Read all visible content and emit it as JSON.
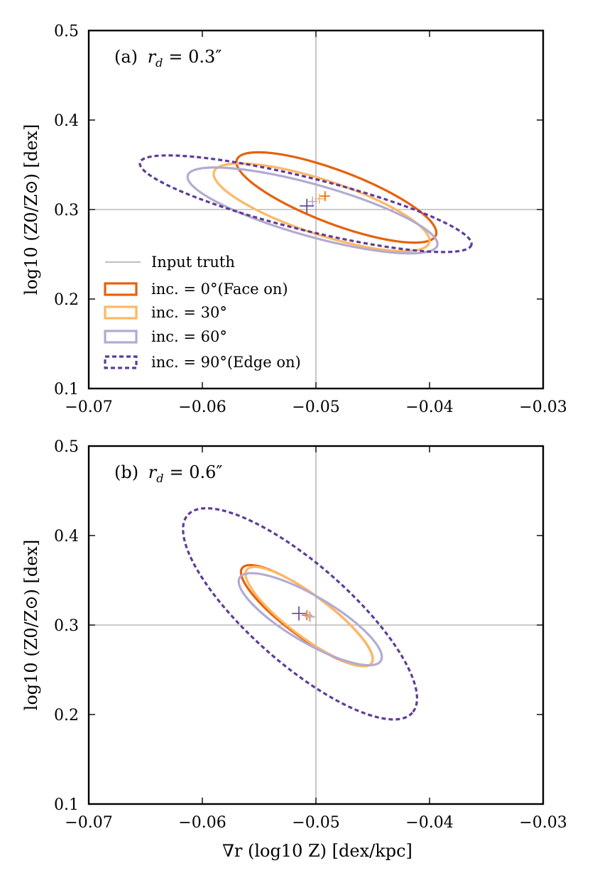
{
  "figure": {
    "xlabel": "∇r (log10 Z) [dex/kpc]"
  },
  "colors": {
    "face_on": "#e6610d",
    "inc30": "#fdb863",
    "inc60": "#b2abd2",
    "edge_on": "#5e3c99",
    "truth": "#999999"
  },
  "chart_data": [
    {
      "type": "scatter",
      "panel_label": "(a) r_d = 0.3″",
      "panel_prefix": "(a)",
      "rd_symbol": "r",
      "rd_subscript": "d",
      "rd_value": "= 0.3″",
      "xlabel": "",
      "ylabel": "log10 (Z0/Z⊙) [dex]",
      "xlim": [
        -0.07,
        -0.03
      ],
      "ylim": [
        0.1,
        0.5
      ],
      "xticks": [
        "−0.07",
        "−0.06",
        "−0.05",
        "−0.04",
        "−0.03"
      ],
      "xtick_values": [
        -0.07,
        -0.06,
        -0.05,
        -0.04,
        -0.03
      ],
      "yticks": [
        "0.1",
        "0.2",
        "0.3",
        "0.4",
        "0.5"
      ],
      "ytick_values": [
        0.1,
        0.2,
        0.3,
        0.4,
        0.5
      ],
      "truth": {
        "x": -0.05,
        "y": 0.3
      },
      "legend": {
        "position": "lower-left",
        "entries": [
          {
            "key": "truth",
            "label": "Input truth"
          },
          {
            "key": "face_on",
            "label": "inc. = 0°(Face on)"
          },
          {
            "key": "inc30",
            "label": "inc. = 30°"
          },
          {
            "key": "inc60",
            "label": "inc. = 60°"
          },
          {
            "key": "edge_on",
            "label": "inc. = 90°(Edge on)"
          }
        ]
      },
      "series": [
        {
          "name": "inc. = 0°(Face on)",
          "key": "face_on",
          "dashed": false,
          "width": 3.2,
          "center": [
            -0.0492,
            0.315
          ],
          "ellipse": {
            "cx": -0.0482,
            "cy": 0.3135,
            "a": 0.0088,
            "b": 0.0505,
            "rho": -0.78
          }
        },
        {
          "name": "inc. = 30°",
          "key": "inc30",
          "dashed": false,
          "width": 3.2,
          "center": [
            -0.0497,
            0.312
          ],
          "ellipse": {
            "cx": -0.0495,
            "cy": 0.3025,
            "a": 0.0095,
            "b": 0.049,
            "rho": -0.76
          }
        },
        {
          "name": "inc. = 60°",
          "key": "inc60",
          "dashed": false,
          "width": 3.2,
          "center": [
            -0.0503,
            0.309
          ],
          "ellipse": {
            "cx": -0.0503,
            "cy": 0.299,
            "a": 0.011,
            "b": 0.048,
            "rho": -0.78
          }
        },
        {
          "name": "inc. = 90°(Edge on)",
          "key": "edge_on",
          "dashed": true,
          "width": 3.2,
          "center": [
            -0.0508,
            0.304
          ],
          "ellipse": {
            "cx": -0.0509,
            "cy": 0.3065,
            "a": 0.0146,
            "b": 0.054,
            "rho": -0.83
          }
        }
      ]
    },
    {
      "type": "scatter",
      "panel_label": "(b) r_d = 0.6″",
      "panel_prefix": "(b)",
      "rd_symbol": "r",
      "rd_subscript": "d",
      "rd_value": "= 0.6″",
      "xlabel": "∇r (log10 Z) [dex/kpc]",
      "ylabel": "log10 (Z0/Z⊙) [dex]",
      "xlim": [
        -0.07,
        -0.03
      ],
      "ylim": [
        0.1,
        0.5
      ],
      "xticks": [
        "−0.07",
        "−0.06",
        "−0.05",
        "−0.04",
        "−0.03"
      ],
      "xtick_values": [
        -0.07,
        -0.06,
        -0.05,
        -0.04,
        -0.03
      ],
      "yticks": [
        "0.1",
        "0.2",
        "0.3",
        "0.4",
        "0.5"
      ],
      "ytick_values": [
        0.1,
        0.2,
        0.3,
        0.4,
        0.5
      ],
      "truth": {
        "x": -0.05,
        "y": 0.3
      },
      "series": [
        {
          "name": "inc. = 0°(Face on)",
          "key": "face_on",
          "dashed": false,
          "width": 3.2,
          "center": [
            -0.0508,
            0.311
          ],
          "ellipse": {
            "cx": -0.0508,
            "cy": 0.3105,
            "a": 0.0058,
            "b": 0.0565,
            "rho": -0.86
          }
        },
        {
          "name": "inc. = 30°",
          "key": "inc30",
          "dashed": false,
          "width": 3.2,
          "center": [
            -0.0506,
            0.31
          ],
          "ellipse": {
            "cx": -0.0506,
            "cy": 0.3095,
            "a": 0.0056,
            "b": 0.0555,
            "rho": -0.86
          }
        },
        {
          "name": "inc. = 60°",
          "key": "inc60",
          "dashed": false,
          "width": 3.2,
          "center": [
            -0.0505,
            0.309
          ],
          "ellipse": {
            "cx": -0.0505,
            "cy": 0.3065,
            "a": 0.0063,
            "b": 0.0515,
            "rho": -0.82
          }
        },
        {
          "name": "inc. = 90°(Edge on)",
          "key": "edge_on",
          "dashed": true,
          "width": 3.2,
          "center": [
            -0.0515,
            0.313
          ],
          "ellipse": {
            "cx": -0.0514,
            "cy": 0.3125,
            "a": 0.0103,
            "b": 0.118,
            "rho": -0.8
          }
        }
      ]
    }
  ]
}
